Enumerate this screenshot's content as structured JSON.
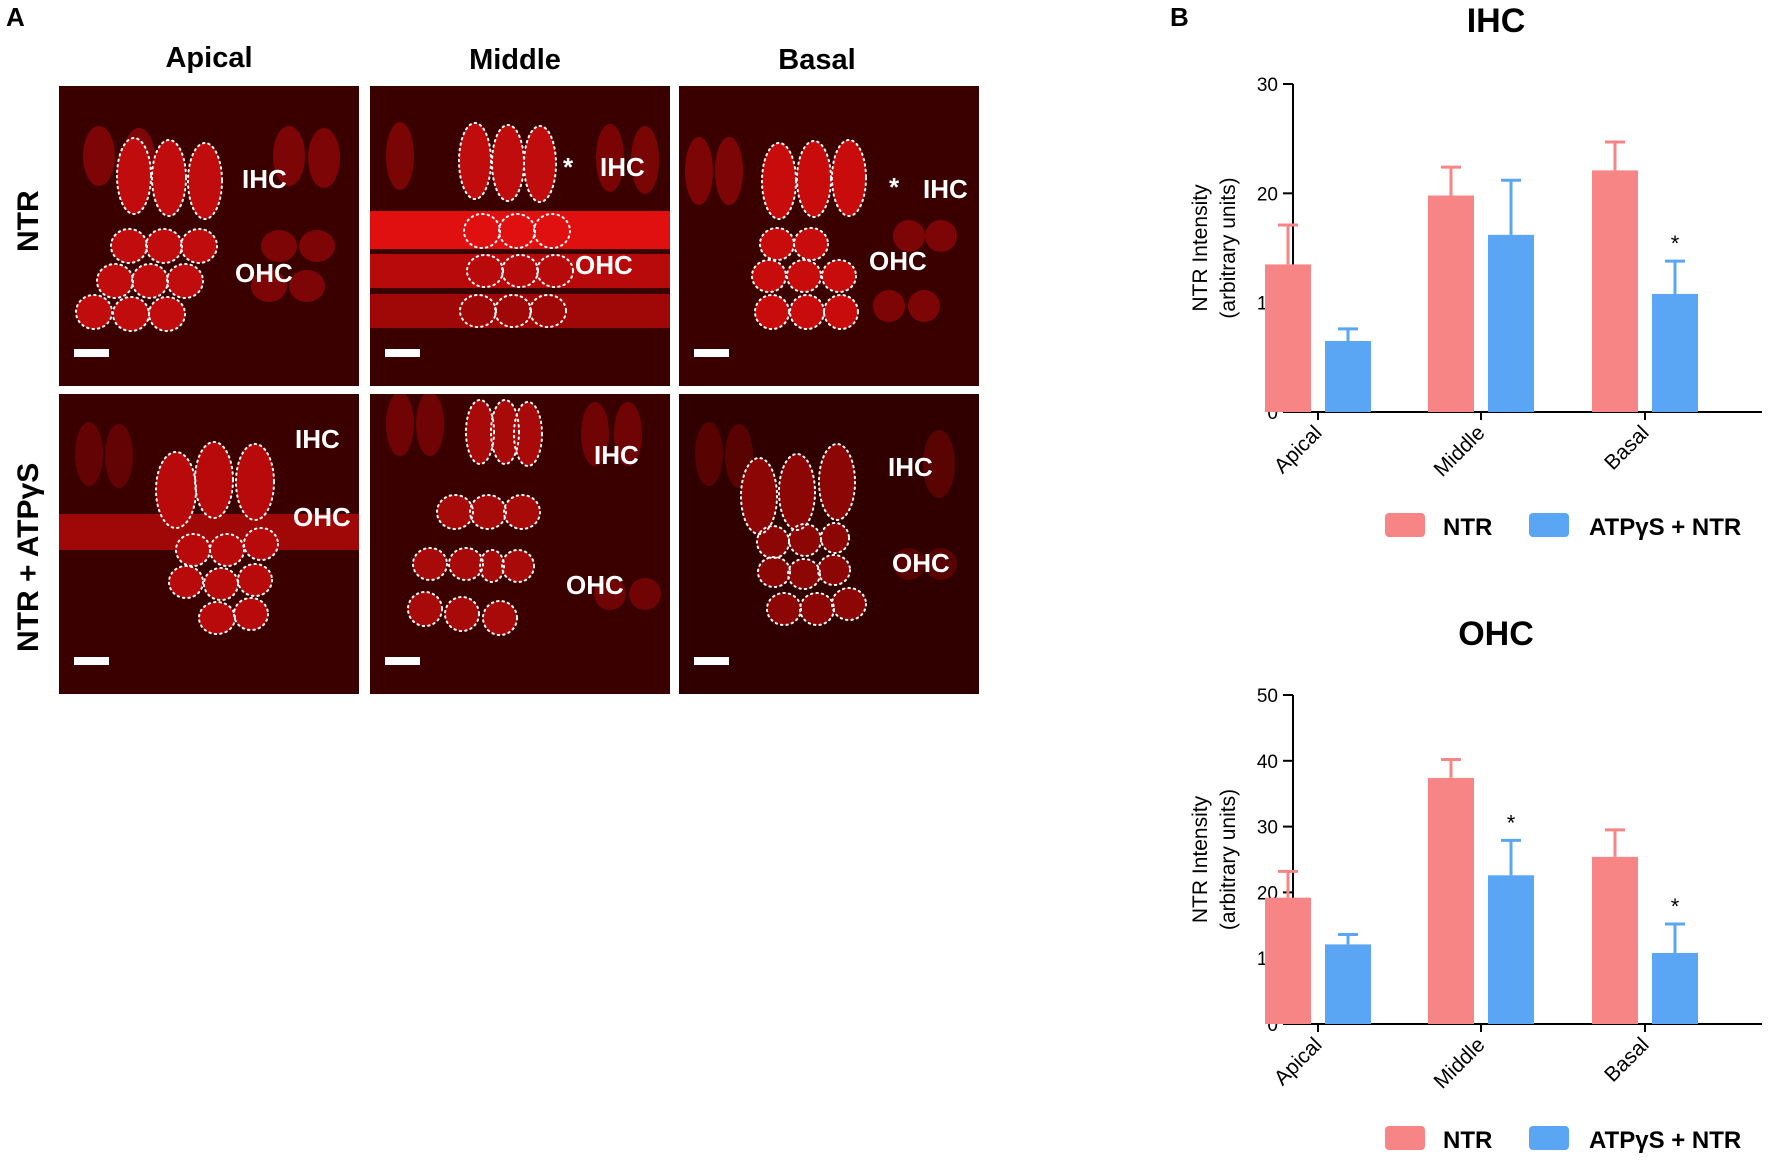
{
  "panel_a": {
    "letter": "A",
    "columns": [
      "Apical",
      "Middle",
      "Basal"
    ],
    "rows": [
      "NTR",
      "NTR + ATPγS"
    ],
    "labels": {
      "ihc": "IHC",
      "ohc": "OHC",
      "asterisk": "*"
    }
  },
  "panel_b": {
    "letter": "B"
  },
  "colors": {
    "ntr": "#f88585",
    "atp": "#5aa6f5",
    "tissue": "#5a0000",
    "cells": "#e01010"
  },
  "chart_data": [
    {
      "type": "bar",
      "title": "IHC",
      "categories": [
        "Apical",
        "Middle",
        "Basal"
      ],
      "ylabel": [
        "NTR Intensity",
        "(arbitrary units)"
      ],
      "ylim": [
        0,
        30
      ],
      "yticks": [
        0,
        10,
        20,
        30
      ],
      "series": [
        {
          "name": "NTR",
          "values": [
            13.5,
            19.8,
            22.1
          ],
          "errors": [
            3.6,
            2.6,
            2.6
          ],
          "significant": [
            false,
            false,
            false
          ]
        },
        {
          "name": "ATPγS + NTR",
          "values": [
            6.5,
            16.2,
            10.8
          ],
          "errors": [
            1.1,
            5.0,
            3.0
          ],
          "significant": [
            false,
            false,
            true
          ]
        }
      ],
      "significance_marker": "*",
      "legend": "bottom"
    },
    {
      "type": "bar",
      "title": "OHC",
      "categories": [
        "Apical",
        "Middle",
        "Basal"
      ],
      "ylabel": [
        "NTR Intensity",
        "(arbitrary units)"
      ],
      "ylim": [
        0,
        50
      ],
      "yticks": [
        0,
        10,
        20,
        30,
        40,
        50
      ],
      "series": [
        {
          "name": "NTR",
          "values": [
            19.2,
            37.4,
            25.4
          ],
          "errors": [
            4.0,
            2.8,
            4.1
          ],
          "significant": [
            false,
            false,
            false
          ]
        },
        {
          "name": "ATPγS + NTR",
          "values": [
            12.1,
            22.6,
            10.8
          ],
          "errors": [
            1.5,
            5.3,
            4.4
          ],
          "significant": [
            false,
            true,
            true
          ]
        }
      ],
      "significance_marker": "*",
      "legend": "bottom"
    }
  ]
}
